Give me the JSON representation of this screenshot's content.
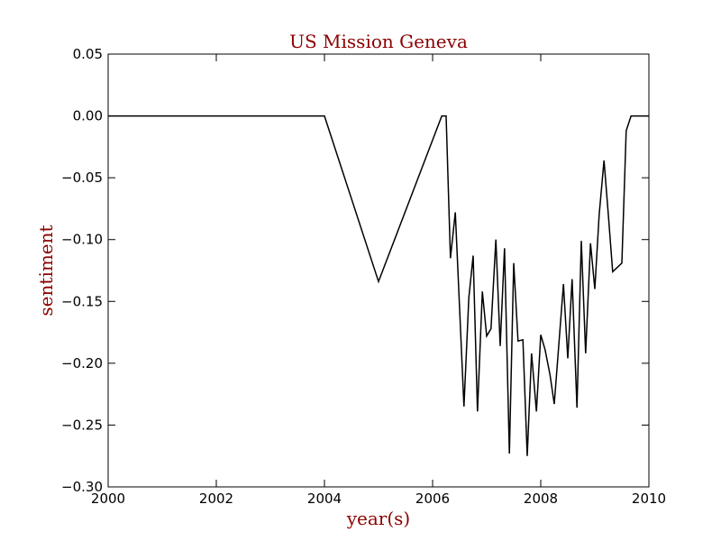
{
  "chart_data": {
    "type": "line",
    "title": "US Mission Geneva",
    "xlabel": "year(s)",
    "ylabel": "sentiment",
    "xlim": [
      2000,
      2010
    ],
    "ylim": [
      -0.3,
      0.05
    ],
    "xticks": [
      "2000",
      "2002",
      "2004",
      "2006",
      "2008",
      "2010"
    ],
    "yticks": [
      "0.05",
      "0.00",
      "−0.05",
      "−0.10",
      "−0.15",
      "−0.20",
      "−0.25",
      "−0.30"
    ],
    "grid": false,
    "line_color": "#000000",
    "text_color": "#8b0000",
    "series": [
      {
        "x": [
          2000.0,
          2004.0,
          2005.0,
          2006.17,
          2006.25,
          2006.33,
          2006.42,
          2006.58,
          2006.67,
          2006.75,
          2006.83,
          2006.92,
          2007.0,
          2007.08,
          2007.17,
          2007.25,
          2007.33,
          2007.42,
          2007.5,
          2007.58,
          2007.67,
          2007.75,
          2007.83,
          2007.92,
          2008.0,
          2008.08,
          2008.17,
          2008.25,
          2008.42,
          2008.5,
          2008.58,
          2008.67,
          2008.75,
          2008.83,
          2008.92,
          2009.0,
          2009.08,
          2009.17,
          2009.25,
          2009.33,
          2009.5,
          2009.58,
          2009.67,
          2010.0
        ],
        "y": [
          0.0,
          0.0,
          -0.134,
          0.0,
          0.0,
          -0.115,
          -0.078,
          -0.235,
          -0.147,
          -0.113,
          -0.239,
          -0.142,
          -0.178,
          -0.172,
          -0.1,
          -0.186,
          -0.107,
          -0.273,
          -0.119,
          -0.182,
          -0.181,
          -0.275,
          -0.192,
          -0.239,
          -0.177,
          -0.189,
          -0.209,
          -0.233,
          -0.136,
          -0.196,
          -0.132,
          -0.236,
          -0.101,
          -0.192,
          -0.103,
          -0.14,
          -0.08,
          -0.036,
          -0.08,
          -0.126,
          -0.119,
          -0.012,
          0.0,
          0.0
        ]
      }
    ]
  }
}
